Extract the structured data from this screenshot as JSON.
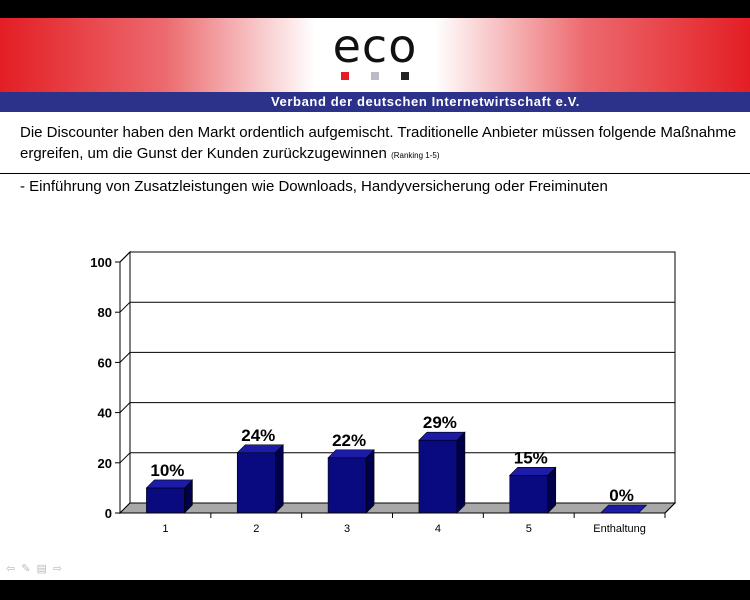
{
  "header": {
    "logo_text": "eco",
    "logo_colors": [
      "#e31e24",
      "#b9bcc4",
      "#222222"
    ],
    "tagline": "Verband der deutschen Internetwirtschaft e.V.",
    "brand_red": "#e31e24",
    "brand_blue": "#2c3289"
  },
  "question": {
    "text": "Die Discounter haben den Markt ordentlich aufgemischt. Traditionelle Anbieter müssen folgende Maßnahme ergreifen, um die Gunst der Kunden zurückzugewinnen",
    "ranking": "(Ranking 1-5)"
  },
  "subtitle": "- Einführung von Zusatzleistungen wie Downloads, Handyversicherung oder Freiminuten",
  "chart_data": {
    "type": "bar",
    "categories": [
      "1",
      "2",
      "3",
      "4",
      "5",
      "Enthaltung"
    ],
    "values": [
      10,
      24,
      22,
      29,
      15,
      0
    ],
    "data_labels": [
      "10%",
      "24%",
      "22%",
      "29%",
      "15%",
      "0%"
    ],
    "ylim": [
      0,
      100
    ],
    "yticks": [
      0,
      20,
      40,
      60,
      80,
      100
    ],
    "grid": true,
    "bar_color": "#0a0a80",
    "style": "3d"
  },
  "footer": {
    "nav_icons": [
      "back-arrow-icon",
      "pen-icon",
      "menu-icon",
      "forward-arrow-icon"
    ]
  }
}
